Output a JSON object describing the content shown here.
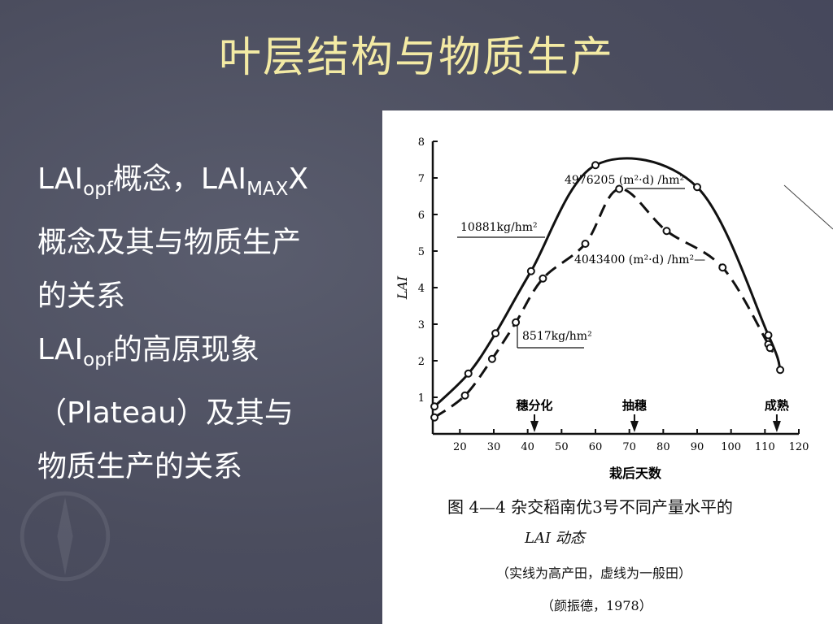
{
  "slide": {
    "title": "叶层结构与物质生产",
    "bullets": [
      {
        "parts": [
          "LAI",
          "opf",
          "概念，LAI",
          "MAX",
          "X"
        ]
      },
      {
        "text": "概念及其与物质生产"
      },
      {
        "text": "的关系"
      },
      {
        "parts": [
          "LAI",
          "opf",
          "的高原现象"
        ]
      },
      {
        "text": "（Plateau）及其与"
      },
      {
        "text": "物质生产的关系"
      }
    ]
  },
  "figure": {
    "caption_line1": "图 4—4   杂交稻南优3号不同产量水平的",
    "caption_line2": "LAI 动态",
    "caption_line3": "（实线为高产田，虚线为一般田）",
    "caption_line4": "（颜振德，1978）"
  },
  "chart_data": {
    "type": "line",
    "xlabel": "栽后天数",
    "ylabel": "LAI",
    "xlim": [
      12,
      120
    ],
    "ylim": [
      0,
      8
    ],
    "xticks": [
      20,
      30,
      40,
      50,
      60,
      70,
      80,
      90,
      100,
      110,
      120
    ],
    "yticks": [
      1,
      2,
      3,
      4,
      5,
      6,
      7,
      8
    ],
    "series": [
      {
        "style": "solid",
        "points": [
          [
            12.5,
            0.75
          ],
          [
            22.5,
            1.65
          ],
          [
            30.5,
            2.75
          ],
          [
            41,
            4.45
          ],
          [
            60,
            7.35
          ],
          [
            90,
            6.75
          ],
          [
            111,
            2.7
          ],
          [
            114.5,
            1.75
          ]
        ],
        "color": "#111111"
      },
      {
        "style": "dashed",
        "points": [
          [
            12.5,
            0.45
          ],
          [
            21.5,
            1.05
          ],
          [
            29.5,
            2.05
          ],
          [
            36.5,
            3.05
          ],
          [
            44.5,
            4.25
          ],
          [
            57,
            5.2
          ],
          [
            67,
            6.7
          ],
          [
            81,
            5.55
          ],
          [
            97.5,
            4.55
          ],
          [
            111,
            2.45
          ],
          [
            111.5,
            2.35
          ]
        ],
        "color": "#111111"
      }
    ],
    "annotations": [
      {
        "text": "4976205 (m²·d) /hm²",
        "series": "solid"
      },
      {
        "text": "10881kg/hm²",
        "series": "solid"
      },
      {
        "text": "4043400 (m²·d) /hm²—",
        "series": "dashed"
      },
      {
        "text": "8517kg/hm²",
        "series": "dashed"
      }
    ],
    "stage_markers": [
      {
        "label": "穗分化",
        "x": 42
      },
      {
        "label": "抽穗",
        "x": 71.5
      },
      {
        "label": "成熟",
        "x": 113.5
      }
    ]
  }
}
